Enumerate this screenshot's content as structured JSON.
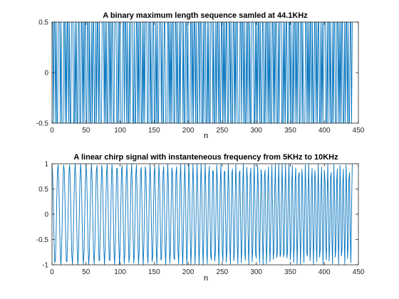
{
  "chart_data": [
    {
      "type": "line",
      "title": "A binary maximum length sequence samled at 44.1KHz",
      "xlabel": "n",
      "ylabel": "",
      "xlim": [
        0,
        450
      ],
      "ylim": [
        -0.5,
        0.5
      ],
      "xticks": [
        0,
        50,
        100,
        150,
        200,
        250,
        300,
        350,
        400,
        450
      ],
      "yticks": [
        -0.5,
        0,
        0.5
      ],
      "xtick_labels": [
        "0",
        "50",
        "100",
        "150",
        "200",
        "250",
        "300",
        "350",
        "400",
        "450"
      ],
      "ytick_labels": [
        "-0.5",
        "0",
        "0.5"
      ],
      "grid": false,
      "series": [
        {
          "color": "#0072BD",
          "x_start": 1,
          "x_end": 441,
          "values": [
            0.5,
            -0.5,
            0.5,
            0.5,
            -0.5,
            0.5,
            -0.5,
            -0.5,
            0.5,
            0.5,
            0.5,
            -0.5,
            0.5,
            -0.5,
            -0.5,
            -0.5,
            0.5,
            0.5,
            -0.5,
            0.5,
            -0.5,
            0.5,
            0.5,
            -0.5,
            0.5,
            -0.5,
            -0.5,
            0.5,
            0.5,
            0.5,
            -0.5,
            -0.5,
            0.5,
            -0.5,
            0.5,
            -0.5,
            -0.5,
            0.5,
            0.5,
            -0.5,
            -0.5,
            0.5,
            0.5,
            -0.5,
            0.5,
            -0.5,
            0.5,
            0.5,
            -0.5,
            -0.5,
            0.5,
            0.5,
            -0.5,
            0.5,
            -0.5,
            -0.5,
            0.5,
            -0.5,
            0.5,
            0.5,
            -0.5,
            -0.5,
            0.5,
            -0.5,
            0.5,
            0.5,
            -0.5,
            0.5,
            -0.5,
            -0.5,
            -0.5,
            0.5,
            0.5,
            0.5,
            -0.5,
            0.5,
            -0.5,
            0.5,
            -0.5,
            -0.5,
            0.5,
            0.5,
            -0.5,
            0.5,
            -0.5,
            0.5,
            0.5,
            -0.5,
            -0.5,
            0.5,
            0.5,
            0.5,
            -0.5,
            -0.5,
            0.5,
            -0.5,
            0.5,
            0.5,
            -0.5,
            -0.5,
            -0.5,
            0.5,
            0.5,
            -0.5,
            0.5,
            0.5,
            -0.5,
            0.5,
            -0.5,
            -0.5,
            0.5,
            -0.5,
            0.5,
            0.5,
            0.5,
            -0.5,
            -0.5,
            0.5,
            -0.5,
            -0.5,
            0.5,
            0.5,
            -0.5,
            0.5,
            -0.5,
            0.5,
            0.5,
            -0.5,
            -0.5,
            0.5,
            -0.5,
            0.5,
            -0.5,
            0.5,
            0.5,
            0.5,
            -0.5,
            -0.5,
            0.5,
            0.5,
            -0.5,
            0.5,
            -0.5,
            -0.5,
            0.5,
            0.5,
            -0.5,
            -0.5,
            0.5,
            -0.5,
            0.5,
            -0.5,
            -0.5,
            0.5,
            0.5,
            0.5,
            -0.5,
            0.5,
            -0.5,
            -0.5,
            0.5,
            0.5,
            -0.5,
            -0.5,
            -0.5,
            0.5,
            0.5,
            -0.5,
            0.5,
            -0.5,
            0.5,
            -0.5,
            0.5,
            0.5,
            -0.5,
            -0.5,
            0.5,
            0.5,
            -0.5,
            0.5,
            -0.5,
            -0.5,
            0.5,
            -0.5,
            0.5,
            0.5,
            0.5,
            -0.5,
            0.5,
            -0.5,
            -0.5,
            0.5,
            0.5,
            -0.5,
            0.5,
            -0.5,
            -0.5,
            -0.5,
            0.5,
            0.5,
            -0.5,
            0.5,
            -0.5,
            0.5,
            0.5,
            -0.5,
            0.5,
            -0.5,
            -0.5,
            0.5,
            0.5,
            -0.5,
            0.5,
            0.5,
            -0.5,
            -0.5,
            0.5,
            -0.5,
            0.5,
            0.5,
            -0.5,
            -0.5,
            0.5,
            -0.5,
            0.5,
            -0.5,
            -0.5,
            0.5,
            0.5,
            0.5,
            -0.5,
            0.5,
            -0.5,
            -0.5,
            0.5,
            -0.5,
            0.5,
            0.5,
            -0.5,
            0.5,
            -0.5,
            -0.5,
            0.5,
            0.5,
            -0.5,
            0.5,
            -0.5,
            0.5,
            -0.5,
            0.5,
            0.5,
            -0.5,
            -0.5,
            0.5,
            0.5,
            -0.5,
            0.5,
            -0.5,
            -0.5,
            0.5,
            0.5,
            -0.5,
            0.5,
            -0.5,
            0.5,
            0.5,
            -0.5,
            -0.5,
            -0.5,
            0.5,
            0.5,
            -0.5,
            0.5,
            0.5,
            -0.5,
            0.5,
            -0.5,
            -0.5,
            0.5,
            -0.5,
            0.5,
            0.5,
            -0.5,
            0.5,
            -0.5,
            -0.5,
            0.5,
            0.5,
            0.5,
            -0.5,
            -0.5,
            0.5,
            -0.5,
            0.5,
            -0.5,
            0.5,
            0.5,
            -0.5,
            0.5,
            -0.5,
            -0.5,
            0.5,
            0.5,
            -0.5,
            -0.5,
            0.5,
            -0.5,
            0.5,
            0.5,
            -0.5,
            0.5,
            -0.5,
            0.5,
            -0.5,
            -0.5,
            0.5,
            0.5,
            -0.5,
            0.5,
            -0.5,
            0.5,
            0.5,
            -0.5,
            -0.5,
            0.5,
            -0.5,
            0.5,
            0.5,
            0.5,
            -0.5,
            -0.5,
            0.5,
            -0.5,
            0.5,
            -0.5,
            0.5,
            0.5,
            -0.5,
            -0.5,
            0.5,
            0.5,
            -0.5,
            0.5,
            -0.5,
            -0.5,
            0.5,
            -0.5,
            0.5,
            0.5,
            -0.5,
            0.5,
            -0.5,
            0.5,
            0.5,
            -0.5,
            -0.5,
            0.5,
            0.5,
            -0.5,
            0.5,
            -0.5,
            -0.5,
            -0.5,
            0.5,
            0.5,
            -0.5,
            0.5,
            -0.5,
            0.5,
            -0.5,
            0.5,
            0.5,
            -0.5,
            0.5,
            -0.5,
            -0.5,
            0.5,
            0.5,
            -0.5,
            0.5,
            -0.5,
            0.5,
            0.5,
            -0.5,
            -0.5,
            0.5,
            -0.5,
            0.5,
            -0.5,
            0.5,
            0.5,
            0.5,
            -0.5,
            -0.5,
            0.5,
            -0.5,
            0.5,
            0.5,
            -0.5,
            0.5,
            -0.5,
            -0.5,
            0.5,
            -0.5,
            0.5,
            0.5,
            -0.5,
            -0.5,
            0.5,
            0.5,
            -0.5,
            0.5,
            -0.5,
            0.5,
            -0.5,
            0.5,
            0.5,
            -0.5,
            -0.5,
            0.5,
            -0.5,
            0.5,
            0.5,
            -0.5,
            0.5,
            -0.5,
            -0.5,
            0.5,
            0.5,
            -0.5,
            0.5
          ]
        }
      ]
    },
    {
      "type": "line",
      "title": "A linear chirp signal with instanteneous frequency from 5KHz to 10KHz",
      "xlabel": "n",
      "ylabel": "",
      "xlim": [
        0,
        450
      ],
      "ylim": [
        -1,
        1
      ],
      "xticks": [
        0,
        50,
        100,
        150,
        200,
        250,
        300,
        350,
        400,
        450
      ],
      "yticks": [
        -1,
        -0.5,
        0,
        0.5,
        1
      ],
      "xtick_labels": [
        "0",
        "50",
        "100",
        "150",
        "200",
        "250",
        "300",
        "350",
        "400",
        "450"
      ],
      "ytick_labels": [
        "-1",
        "-0.5",
        "0",
        "0.5",
        "1"
      ],
      "grid": false,
      "series": [
        {
          "color": "#0072BD",
          "sample_rate_hz": 44100,
          "f_start_hz": 5000,
          "f_end_hz": 10000,
          "n_start": 0,
          "n_end": 441
        }
      ]
    }
  ]
}
